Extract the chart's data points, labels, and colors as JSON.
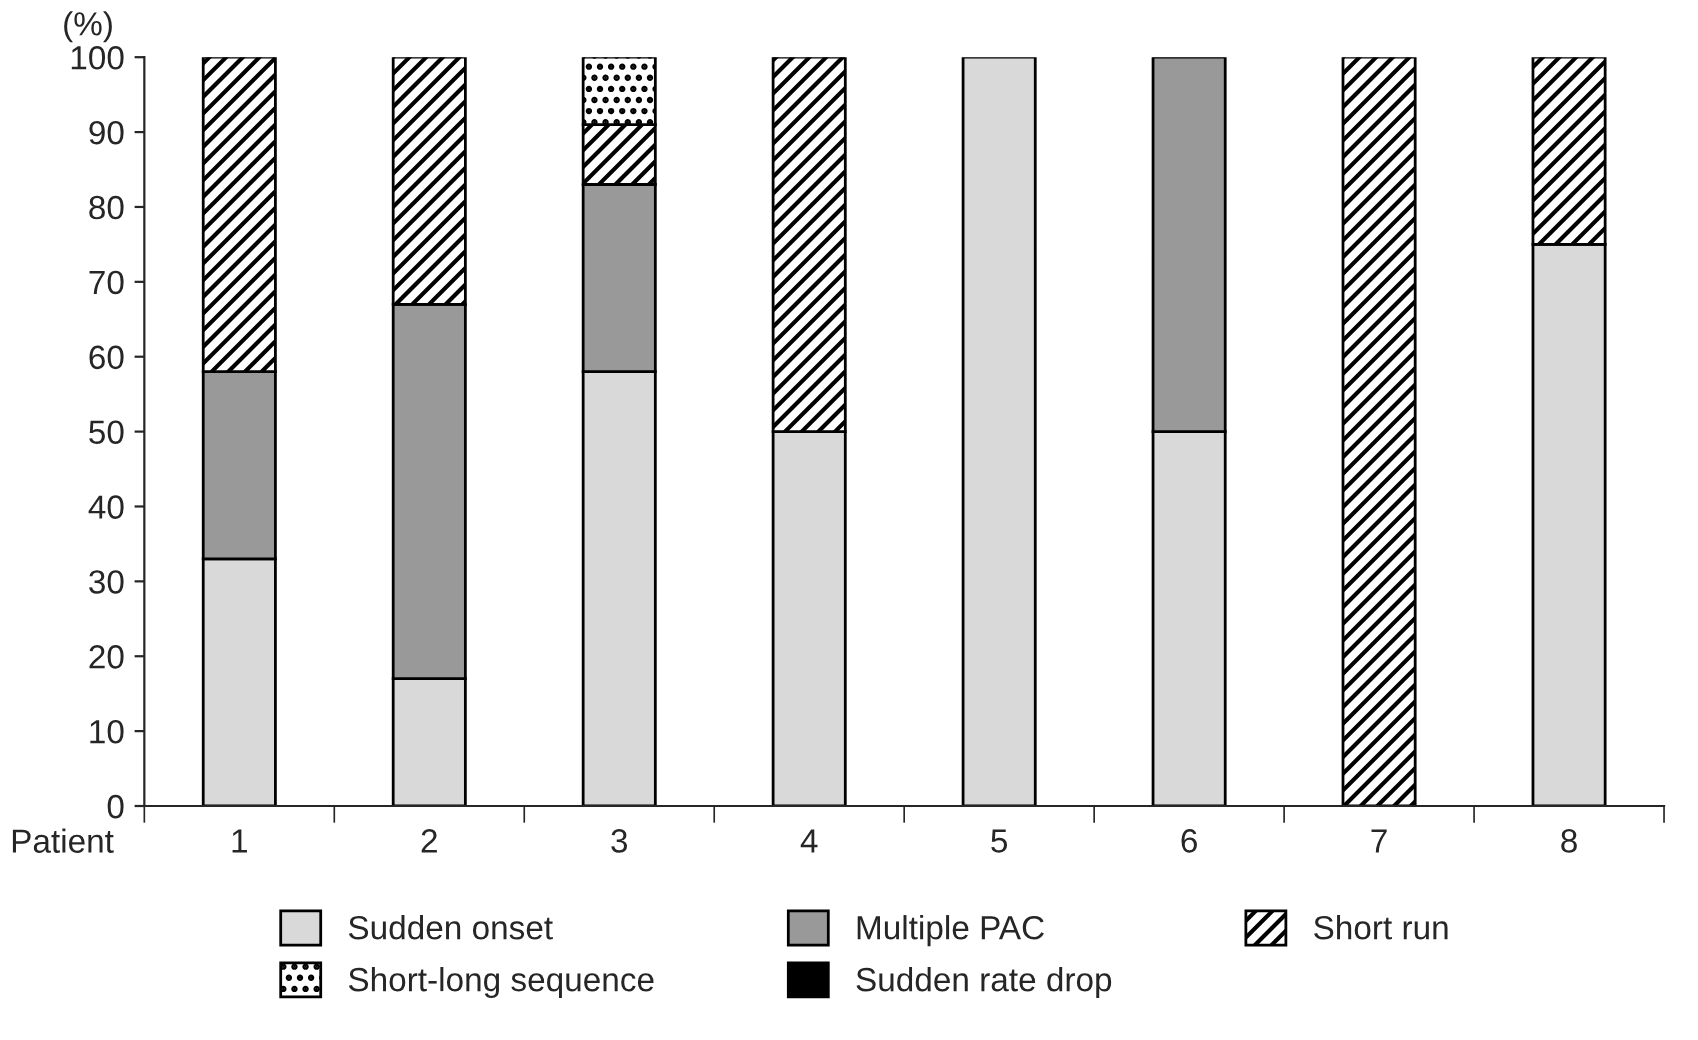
{
  "chart_data": {
    "type": "bar",
    "stacked": true,
    "xlabel": "Patient",
    "ylabel": "(%)",
    "categories": [
      "1",
      "2",
      "3",
      "4",
      "5",
      "6",
      "7",
      "8"
    ],
    "ylim": [
      0,
      100
    ],
    "yticks": [
      0,
      10,
      20,
      30,
      40,
      50,
      60,
      70,
      80,
      90,
      100
    ],
    "legend": "bottom",
    "grid": false,
    "series": [
      {
        "name": "Sudden onset",
        "color": "#d9d9d9",
        "values": [
          33,
          17,
          58,
          50,
          100,
          50,
          0,
          75
        ]
      },
      {
        "name": "Multiple PAC",
        "color": "#999999",
        "values": [
          25,
          50,
          25,
          0,
          0,
          50,
          0,
          0
        ]
      },
      {
        "name": "Short run",
        "color": "#000000",
        "values": [
          42,
          33,
          8,
          50,
          0,
          0,
          100,
          25
        ]
      },
      {
        "name": "Short-long sequence",
        "color": "#000000",
        "values": [
          0,
          0,
          9,
          0,
          0,
          0,
          0,
          0
        ]
      },
      {
        "name": "Sudden rate drop",
        "color": "#000000",
        "values": [
          0,
          0,
          0,
          0,
          0,
          0,
          0,
          0
        ]
      }
    ]
  }
}
